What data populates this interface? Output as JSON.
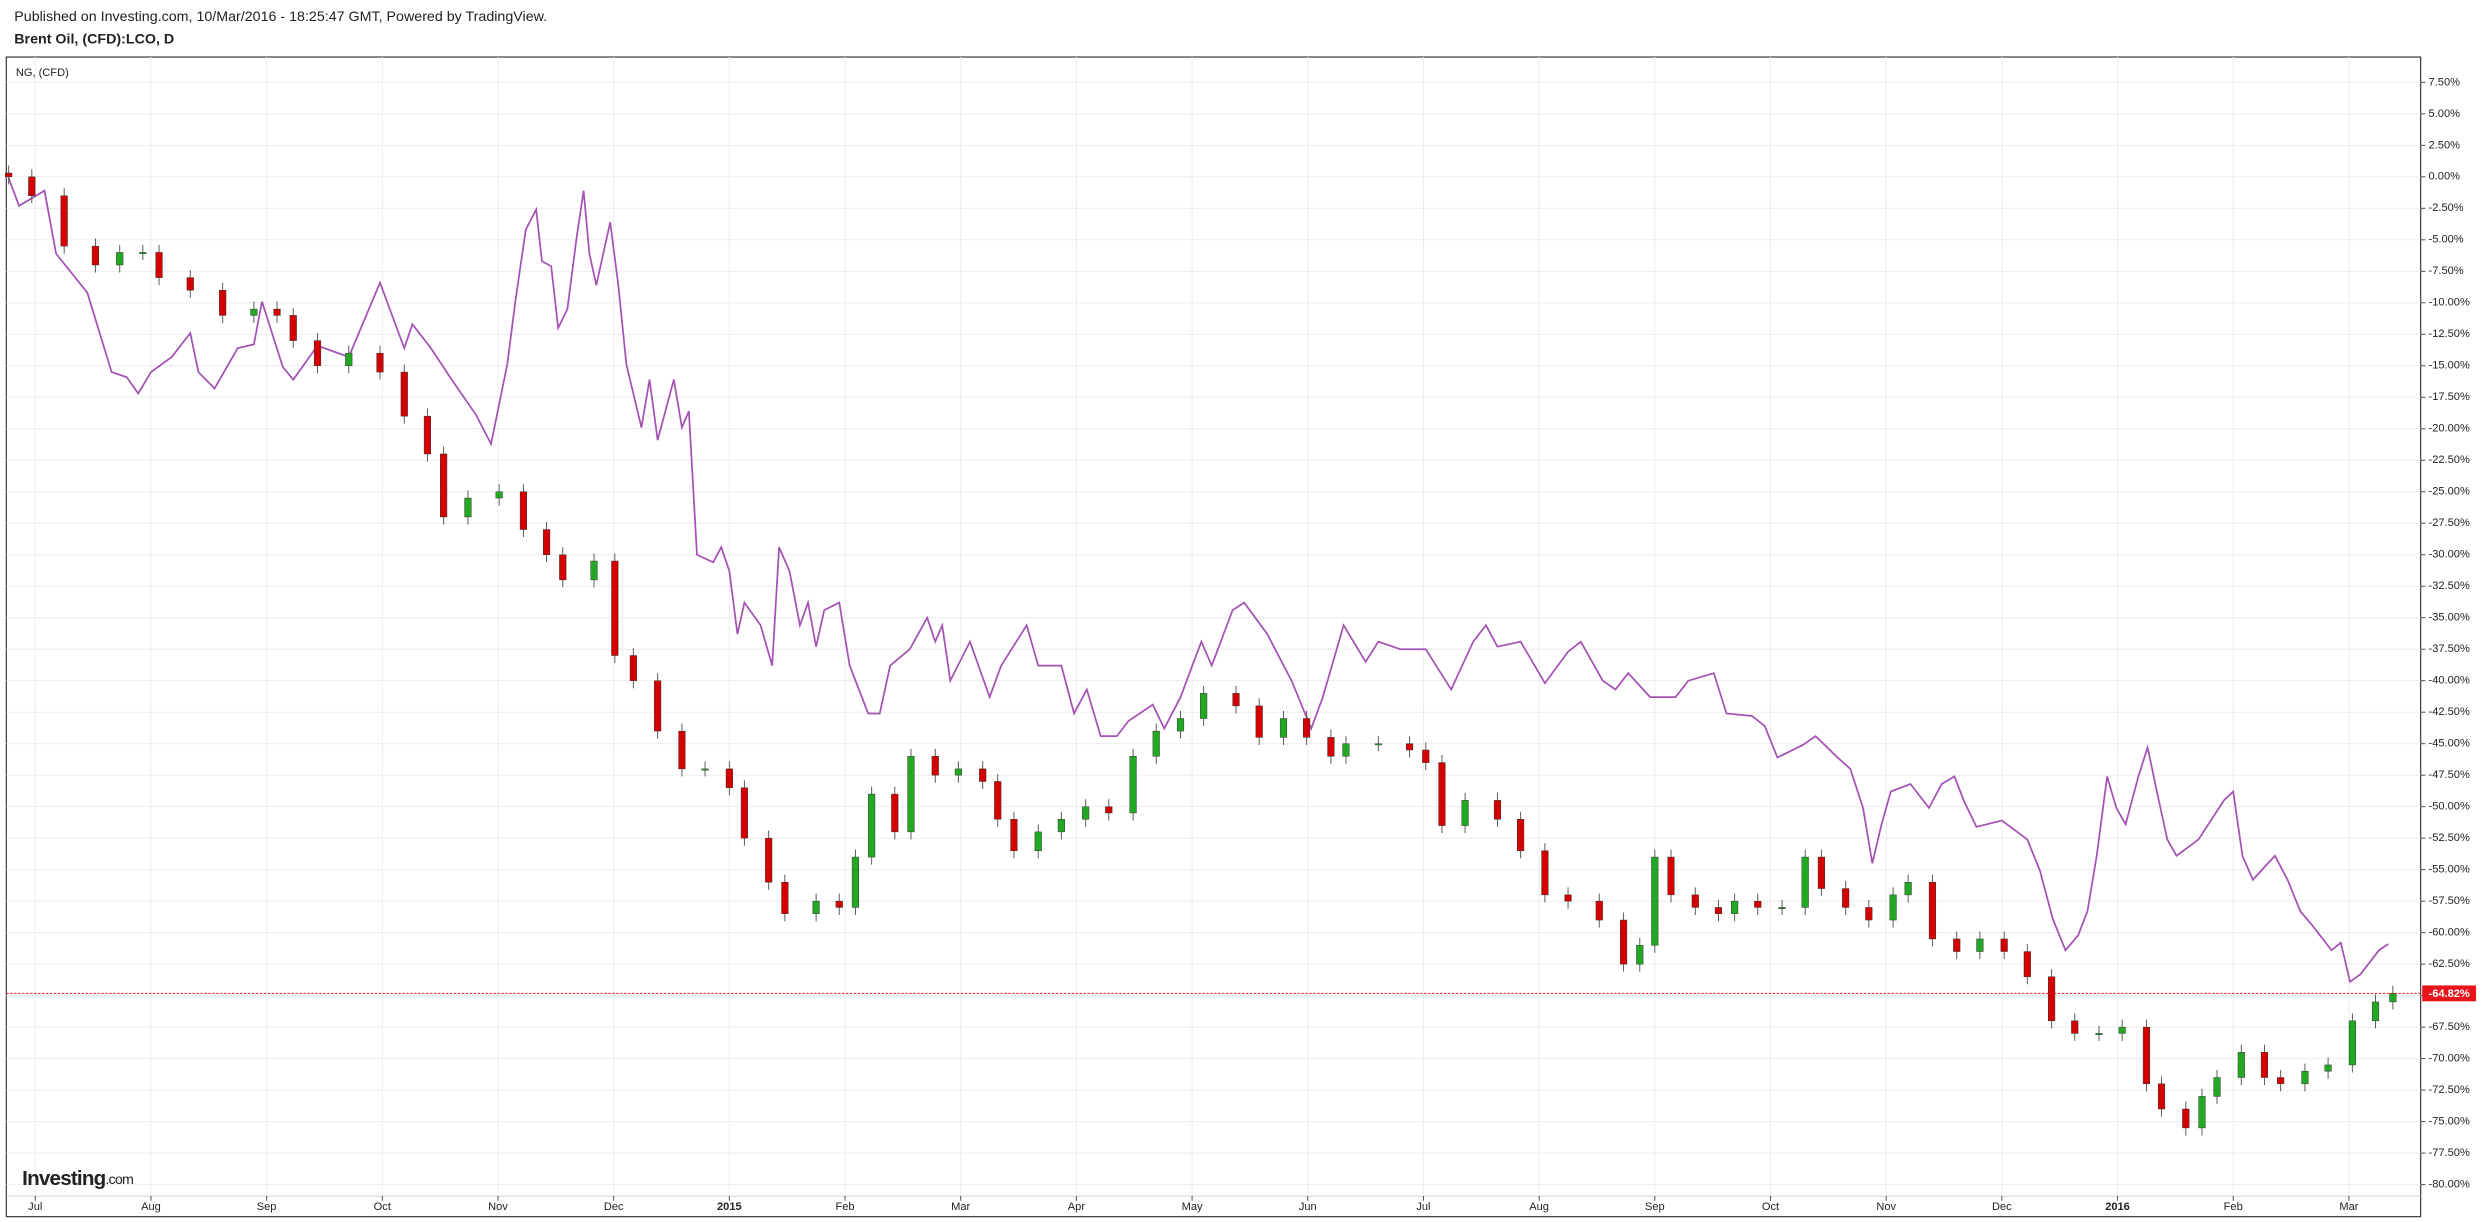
{
  "header": {
    "published": "Published on Investing.com, 10/Mar/2016 - 18:25:47 GMT, Powered by TradingView.",
    "symbol": "Brent Oil, (CFD):LCO, D"
  },
  "logo": {
    "name": "Investing",
    "suffix": ".com"
  },
  "chart_data": {
    "type": "candlestick",
    "up_color": "#22a822",
    "down_color": "#d40000",
    "wick_color": "#555555",
    "grid": true,
    "xlim": [
      -0.25,
      20.62
    ],
    "ylim": [
      -80.91,
      9.51
    ],
    "xticks": [
      {
        "value": 0,
        "label": "Jul"
      },
      {
        "value": 1,
        "label": "Aug"
      },
      {
        "value": 2,
        "label": "Sep"
      },
      {
        "value": 3,
        "label": "Oct"
      },
      {
        "value": 4,
        "label": "Nov"
      },
      {
        "value": 5,
        "label": "Dec"
      },
      {
        "value": 6,
        "label": "2015"
      },
      {
        "value": 7,
        "label": "Feb"
      },
      {
        "value": 8,
        "label": "Mar"
      },
      {
        "value": 9,
        "label": "Apr"
      },
      {
        "value": 10,
        "label": "May"
      },
      {
        "value": 11,
        "label": "Jun"
      },
      {
        "value": 12,
        "label": "Jul"
      },
      {
        "value": 13,
        "label": "Aug"
      },
      {
        "value": 14,
        "label": "Sep"
      },
      {
        "value": 15,
        "label": "Oct"
      },
      {
        "value": 16,
        "label": "Nov"
      },
      {
        "value": 17,
        "label": "Dec"
      },
      {
        "value": 18,
        "label": "2016"
      },
      {
        "value": 19,
        "label": "Feb"
      },
      {
        "value": 20,
        "label": "Mar"
      }
    ],
    "yticks": [
      {
        "value": 7.5,
        "label": "7.50%"
      },
      {
        "value": 5,
        "label": "5.00%"
      },
      {
        "value": 2.5,
        "label": "2.50%"
      },
      {
        "value": 0,
        "label": "0.00%"
      },
      {
        "value": -2.5,
        "label": "-2.50%"
      },
      {
        "value": -5,
        "label": "-5.00%"
      },
      {
        "value": -7.5,
        "label": "-7.50%"
      },
      {
        "value": -10,
        "label": "-10.00%"
      },
      {
        "value": -12.5,
        "label": "-12.50%"
      },
      {
        "value": -15,
        "label": "-15.00%"
      },
      {
        "value": -17.5,
        "label": "-17.50%"
      },
      {
        "value": -20,
        "label": "-20.00%"
      },
      {
        "value": -22.5,
        "label": "-22.50%"
      },
      {
        "value": -25,
        "label": "-25.00%"
      },
      {
        "value": -27.5,
        "label": "-27.50%"
      },
      {
        "value": -30,
        "label": "-30.00%"
      },
      {
        "value": -32.5,
        "label": "-32.50%"
      },
      {
        "value": -35,
        "label": "-35.00%"
      },
      {
        "value": -37.5,
        "label": "-37.50%"
      },
      {
        "value": -40,
        "label": "-40.00%"
      },
      {
        "value": -42.5,
        "label": "-42.50%"
      },
      {
        "value": -45,
        "label": "-45.00%"
      },
      {
        "value": -47.5,
        "label": "-47.50%"
      },
      {
        "value": -50,
        "label": "-50.00%"
      },
      {
        "value": -52.5,
        "label": "-52.50%"
      },
      {
        "value": -55,
        "label": "-55.00%"
      },
      {
        "value": -57.5,
        "label": "-57.50%"
      },
      {
        "value": -60,
        "label": "-60.00%"
      },
      {
        "value": -62.5,
        "label": "-62.50%"
      },
      {
        "value": -65,
        "label": "-65.00%"
      },
      {
        "value": -67.5,
        "label": "-67.50%"
      },
      {
        "value": -70,
        "label": "-70.00%"
      },
      {
        "value": -72.5,
        "label": "-72.50%"
      },
      {
        "value": -75,
        "label": "-75.00%"
      },
      {
        "value": -77.5,
        "label": "-77.50%"
      },
      {
        "value": -80,
        "label": "-80.00%"
      }
    ],
    "x": [
      -0.23,
      -0.03,
      0.25,
      0.52,
      0.73,
      0.93,
      1.07,
      1.34,
      1.62,
      1.89,
      2.09,
      2.23,
      2.44,
      2.71,
      2.98,
      3.19,
      3.39,
      3.53,
      3.74,
      4.01,
      4.22,
      4.42,
      4.56,
      4.83,
      5.01,
      5.17,
      5.38,
      5.59,
      5.79,
      6.0,
      6.13,
      6.34,
      6.48,
      6.75,
      6.95,
      7.09,
      7.23,
      7.43,
      7.57,
      7.78,
      7.98,
      8.19,
      8.32,
      8.46,
      8.67,
      8.87,
      9.08,
      9.28,
      9.49,
      9.69,
      9.9,
      10.1,
      10.38,
      10.58,
      10.79,
      10.99,
      11.2,
      11.33,
      11.61,
      11.88,
      12.02,
      12.16,
      12.36,
      12.64,
      12.84,
      13.05,
      13.25,
      13.52,
      13.73,
      13.87,
      14.0,
      14.14,
      14.35,
      14.55,
      14.69,
      14.89,
      15.1,
      15.3,
      15.44,
      15.65,
      15.85,
      16.06,
      16.19,
      16.4,
      16.61,
      16.81,
      17.02,
      17.22,
      17.43,
      17.63,
      17.84,
      18.04,
      18.25,
      18.38,
      18.59,
      18.73,
      18.86,
      19.07,
      19.27,
      19.41,
      19.62,
      19.82,
      20.03,
      20.23,
      20.38
    ],
    "open": [
      0.3,
      0,
      -1.5,
      -5.5,
      -7,
      -6,
      -6,
      -8,
      -9,
      -11,
      -10.5,
      -11,
      -13,
      -15,
      -14,
      -15.5,
      -19,
      -22,
      -27,
      -25.5,
      -25,
      -28,
      -30,
      -32,
      -30.5,
      -38,
      -40,
      -44,
      -47,
      -47,
      -48.5,
      -52.5,
      -56,
      -58.5,
      -57.5,
      -58,
      -54,
      -49,
      -52,
      -46,
      -47.5,
      -47,
      -48,
      -51,
      -53.5,
      -52,
      -51,
      -50,
      -50.5,
      -46,
      -44,
      -43,
      -41,
      -42,
      -44.5,
      -43,
      -44.5,
      -46,
      -45,
      -45,
      -45.5,
      -46.5,
      -51.5,
      -49.5,
      -51,
      -53.5,
      -57,
      -57.5,
      -59,
      -62.5,
      -61,
      -54,
      -57,
      -58,
      -58.5,
      -57.5,
      -58,
      -58,
      -54,
      -56.5,
      -58,
      -59,
      -57,
      -56,
      -60.5,
      -61.5,
      -60.5,
      -61.5,
      -63.5,
      -67,
      -68,
      -68,
      -67.5,
      -72,
      -74,
      -75.5,
      -73,
      -71.5,
      -69.5,
      -71.5,
      -72,
      -71,
      -70.5,
      -67,
      -65.5
    ],
    "high": [
      0.9,
      0.6,
      -0.9,
      -4.9,
      -5.4,
      -5.4,
      -5.4,
      -7.4,
      -8.4,
      -9.9,
      -9.9,
      -10.4,
      -12.4,
      -13.4,
      -13.4,
      -14.9,
      -18.4,
      -21.4,
      -24.9,
      -24.4,
      -24.4,
      -27.4,
      -29.4,
      -29.9,
      -29.9,
      -37.4,
      -39.4,
      -43.4,
      -46.4,
      -46.4,
      -47.9,
      -51.9,
      -55.4,
      -56.9,
      -56.9,
      -53.4,
      -48.4,
      -48.4,
      -45.4,
      -45.4,
      -46.4,
      -46.4,
      -47.4,
      -50.4,
      -51.4,
      -50.4,
      -49.4,
      -49.4,
      -45.4,
      -43.4,
      -42.4,
      -40.4,
      -40.4,
      -41.4,
      -42.4,
      -42.4,
      -43.9,
      -44.4,
      -44.4,
      -44.4,
      -44.9,
      -45.9,
      -48.9,
      -48.9,
      -50.4,
      -52.9,
      -56.4,
      -56.9,
      -58.4,
      -60.4,
      -53.4,
      -53.4,
      -56.4,
      -57.4,
      -56.9,
      -56.9,
      -57.4,
      -53.4,
      -53.4,
      -55.9,
      -57.4,
      -56.4,
      -55.4,
      -55.4,
      -59.9,
      -59.9,
      -59.9,
      -60.9,
      -62.9,
      -66.4,
      -67.4,
      -66.9,
      -66.9,
      -71.4,
      -73.4,
      -72.4,
      -70.9,
      -68.9,
      -68.9,
      -70.9,
      -70.4,
      -69.9,
      -66.4,
      -64.9,
      -64.2
    ],
    "low": [
      -0.6,
      -2.1,
      -6.1,
      -7.6,
      -7.6,
      -6.6,
      -8.6,
      -9.6,
      -11.6,
      -11.6,
      -11.6,
      -13.6,
      -15.6,
      -15.6,
      -16.1,
      -19.6,
      -22.6,
      -27.6,
      -27.6,
      -26.1,
      -28.6,
      -30.6,
      -32.6,
      -32.6,
      -38.6,
      -40.6,
      -44.6,
      -47.6,
      -47.6,
      -49.1,
      -53.1,
      -56.6,
      -59.1,
      -59.1,
      -58.6,
      -58.6,
      -54.6,
      -52.6,
      -52.6,
      -48.1,
      -48.1,
      -48.6,
      -51.6,
      -54.1,
      -54.1,
      -52.6,
      -51.6,
      -51.1,
      -51.1,
      -46.6,
      -44.6,
      -43.6,
      -42.6,
      -45.1,
      -45.1,
      -45.1,
      -46.6,
      -46.6,
      -45.6,
      -46.1,
      -47.1,
      -52.1,
      -52.1,
      -51.6,
      -54.1,
      -57.6,
      -58.1,
      -59.6,
      -63.1,
      -63.1,
      -61.6,
      -57.6,
      -58.6,
      -59.1,
      -59.1,
      -58.6,
      -58.6,
      -58.6,
      -57.1,
      -58.6,
      -59.6,
      -59.6,
      -57.6,
      -61.1,
      -62.1,
      -62.1,
      -62.1,
      -64.1,
      -67.6,
      -68.6,
      -68.6,
      -68.6,
      -72.6,
      -74.6,
      -76.1,
      -76.1,
      -73.6,
      -72.1,
      -72.1,
      -72.6,
      -72.6,
      -71.6,
      -71.1,
      -67.6,
      -66.1
    ],
    "close": [
      0,
      -1.5,
      -5.5,
      -7,
      -6,
      -6,
      -8,
      -9,
      -11,
      -10.5,
      -11,
      -13,
      -15,
      -14,
      -15.5,
      -19,
      -22,
      -27,
      -25.5,
      -25,
      -28,
      -30,
      -32,
      -30.5,
      -38,
      -40,
      -44,
      -47,
      -47,
      -48.5,
      -52.5,
      -56,
      -58.5,
      -57.5,
      -58,
      -54,
      -49,
      -52,
      -46,
      -47.5,
      -47,
      -48,
      -51,
      -53.5,
      -52,
      -51,
      -50,
      -50.5,
      -46,
      -44,
      -43,
      -41,
      -42,
      -44.5,
      -43,
      -44.5,
      -46,
      -45,
      -45,
      -45.5,
      -46.5,
      -51.5,
      -49.5,
      -51,
      -53.5,
      -57,
      -57.5,
      -59,
      -62.5,
      -61,
      -54,
      -57,
      -58,
      -58.5,
      -57.5,
      -58,
      -58,
      -54,
      -56.5,
      -58,
      -59,
      -57,
      -56,
      -60.5,
      -61.5,
      -60.5,
      -61.5,
      -63.5,
      -67,
      -68,
      -68,
      -67.5,
      -72,
      -74,
      -75.5,
      -73,
      -71.5,
      -69.5,
      -71.5,
      -72,
      -71,
      -70.5,
      -67,
      -65.5,
      -64.82
    ],
    "last_label": "-64.82%",
    "last_color": "#e8141b",
    "series": [
      {
        "name": "NG,  (CFD)",
        "type": "line",
        "color": "#a552b5",
        "x": [
          -0.23,
          -0.14,
          0.08,
          0.18,
          0.45,
          0.66,
          0.79,
          0.89,
          1.0,
          1.18,
          1.34,
          1.41,
          1.55,
          1.75,
          1.89,
          1.96,
          2.14,
          2.23,
          2.44,
          2.71,
          2.98,
          3.19,
          3.26,
          3.42,
          3.6,
          3.81,
          3.94,
          4.08,
          4.15,
          4.24,
          4.33,
          4.38,
          4.46,
          4.52,
          4.6,
          4.68,
          4.74,
          4.79,
          4.85,
          4.97,
          5.04,
          5.11,
          5.24,
          5.31,
          5.38,
          5.52,
          5.59,
          5.65,
          5.72,
          5.86,
          5.93,
          6.0,
          6.07,
          6.13,
          6.27,
          6.37,
          6.43,
          6.52,
          6.61,
          6.68,
          6.75,
          6.82,
          6.95,
          7.04,
          7.2,
          7.3,
          7.39,
          7.56,
          7.71,
          7.78,
          7.84,
          7.91,
          8.08,
          8.25,
          8.35,
          8.57,
          8.67,
          8.87,
          8.98,
          9.09,
          9.21,
          9.35,
          9.45,
          9.66,
          9.76,
          9.9,
          10.08,
          10.17,
          10.35,
          10.45,
          10.65,
          10.86,
          11.03,
          11.13,
          11.31,
          11.5,
          11.61,
          11.8,
          12.02,
          12.24,
          12.43,
          12.54,
          12.64,
          12.84,
          13.05,
          13.25,
          13.36,
          13.55,
          13.66,
          13.77,
          13.96,
          14.18,
          14.29,
          14.51,
          14.62,
          14.84,
          14.95,
          15.06,
          15.28,
          15.39,
          15.58,
          15.69,
          15.8,
          15.88,
          15.96,
          16.04,
          16.21,
          16.37,
          16.48,
          16.59,
          16.67,
          16.78,
          17.0,
          17.22,
          17.33,
          17.44,
          17.55,
          17.66,
          17.74,
          17.82,
          17.91,
          17.99,
          18.07,
          18.18,
          18.26,
          18.34,
          18.43,
          18.51,
          18.7,
          18.92,
          19.0,
          19.08,
          19.17,
          19.36,
          19.47,
          19.58,
          19.69,
          19.85,
          19.93,
          20.01,
          20.1,
          20.26,
          20.34
        ],
        "values": [
          -0.1,
          -2.3,
          -1.1,
          -6.1,
          -9.2,
          -15.5,
          -15.9,
          -17.2,
          -15.5,
          -14.3,
          -12.4,
          -15.5,
          -16.8,
          -13.6,
          -13.3,
          -9.9,
          -15.1,
          -16.1,
          -13.4,
          -14.3,
          -8.4,
          -13.6,
          -11.7,
          -13.6,
          -16.1,
          -18.9,
          -21.2,
          -14.9,
          -9.9,
          -4.2,
          -2.6,
          -6.7,
          -7.1,
          -12.0,
          -10.5,
          -4.8,
          -1.1,
          -6.1,
          -8.6,
          -3.6,
          -8.6,
          -14.9,
          -19.9,
          -16.1,
          -20.9,
          -16.1,
          -19.9,
          -18.6,
          -30.0,
          -30.6,
          -29.4,
          -31.3,
          -36.3,
          -33.8,
          -35.6,
          -38.8,
          -29.4,
          -31.3,
          -35.6,
          -33.8,
          -37.3,
          -34.4,
          -33.8,
          -38.8,
          -42.6,
          -42.6,
          -38.8,
          -37.5,
          -35.0,
          -36.9,
          -35.6,
          -40.0,
          -36.9,
          -41.3,
          -38.8,
          -35.6,
          -38.8,
          -38.8,
          -42.6,
          -40.7,
          -44.4,
          -44.4,
          -43.2,
          -41.9,
          -43.8,
          -41.3,
          -36.9,
          -38.8,
          -34.4,
          -33.8,
          -36.3,
          -40.0,
          -43.8,
          -41.3,
          -35.6,
          -38.5,
          -36.9,
          -37.5,
          -37.5,
          -40.7,
          -36.9,
          -35.6,
          -37.3,
          -36.9,
          -40.2,
          -37.7,
          -36.9,
          -40.0,
          -40.7,
          -39.4,
          -41.3,
          -41.3,
          -40.0,
          -39.4,
          -42.6,
          -42.8,
          -43.6,
          -46.1,
          -45.1,
          -44.4,
          -46.1,
          -47.0,
          -50.1,
          -54.5,
          -51.4,
          -48.8,
          -48.2,
          -50.1,
          -48.2,
          -47.6,
          -49.5,
          -51.6,
          -51.1,
          -52.6,
          -55.1,
          -58.9,
          -61.4,
          -60.2,
          -58.3,
          -53.9,
          -47.6,
          -50.1,
          -51.4,
          -47.6,
          -45.3,
          -48.8,
          -52.6,
          -53.9,
          -52.6,
          -49.5,
          -48.8,
          -53.9,
          -55.8,
          -53.9,
          -55.8,
          -58.3,
          -59.5,
          -61.4,
          -60.8,
          -63.9,
          -63.3,
          -61.4,
          -60.9
        ]
      }
    ]
  }
}
